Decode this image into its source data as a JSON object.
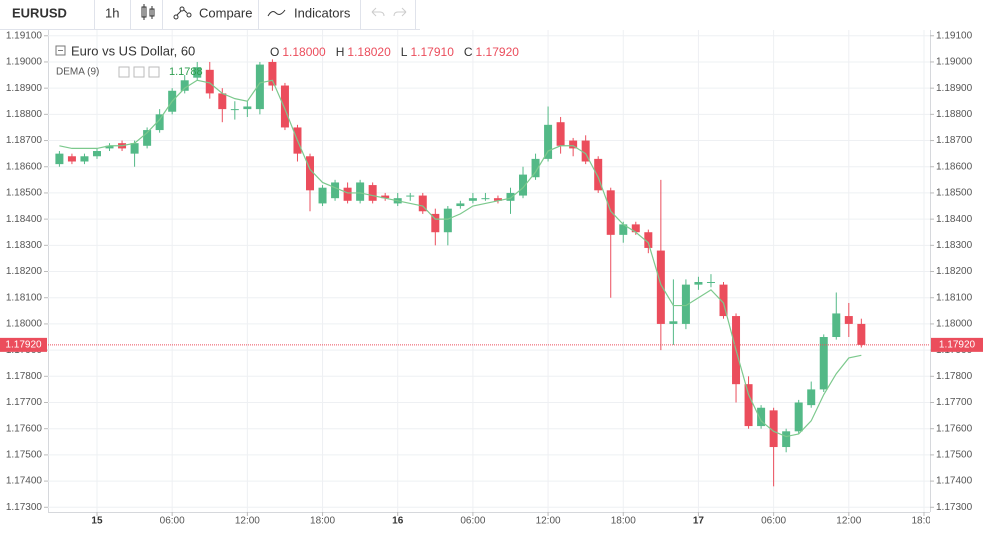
{
  "toolbar": {
    "symbol": "EURUSD",
    "interval": "1h",
    "compare": "Compare",
    "indicators": "Indicators"
  },
  "chart_data": {
    "type": "candlestick",
    "title": "Euro vs US Dollar, 60",
    "ohlc_legend": [
      {
        "key": "O",
        "value": "1.18000"
      },
      {
        "key": "H",
        "value": "1.18020"
      },
      {
        "key": "L",
        "value": "1.17910"
      },
      {
        "key": "C",
        "value": "1.17920"
      }
    ],
    "up_color": "#53b987",
    "down_color": "#eb4d5c",
    "x": [
      -3,
      -2,
      -1,
      0,
      1,
      2,
      3,
      4,
      5,
      6,
      7,
      8,
      9,
      10,
      11,
      12,
      13,
      14,
      15,
      16,
      17,
      18,
      19,
      20,
      21,
      22,
      23,
      24,
      25,
      26,
      27,
      28,
      29,
      30,
      31,
      32,
      33,
      34,
      35,
      36,
      37,
      38,
      39,
      40,
      41,
      42,
      43,
      44,
      45,
      46,
      47,
      48,
      49,
      50,
      51,
      52,
      53,
      54,
      55,
      56,
      57,
      58,
      59,
      60,
      61
    ],
    "open": [
      1.1861,
      1.1864,
      1.1862,
      1.1864,
      1.1867,
      1.1869,
      1.1865,
      1.1868,
      1.1874,
      1.1881,
      1.1889,
      1.1894,
      1.1897,
      1.1888,
      1.1882,
      1.1882,
      1.1882,
      1.19,
      1.1891,
      1.1875,
      1.1864,
      1.1846,
      1.1848,
      1.1852,
      1.1847,
      1.1853,
      1.1849,
      1.1846,
      1.1849,
      1.1849,
      1.1842,
      1.1835,
      1.1845,
      1.1847,
      1.1848,
      1.1848,
      1.1847,
      1.1849,
      1.1856,
      1.1863,
      1.1877,
      1.187,
      1.187,
      1.1863,
      1.1851,
      1.1834,
      1.1838,
      1.1835,
      1.1828,
      1.18,
      1.18,
      1.1815,
      1.1816,
      1.1815,
      1.1803,
      1.1777,
      1.1761,
      1.1767,
      1.1753,
      1.1759,
      1.1769,
      1.1775,
      1.1795,
      1.1803,
      1.18
    ],
    "high": [
      1.1866,
      1.1865,
      1.1865,
      1.1867,
      1.1869,
      1.187,
      1.187,
      1.1875,
      1.1882,
      1.189,
      1.1895,
      1.19,
      1.19,
      1.189,
      1.1885,
      1.1885,
      1.19,
      1.1901,
      1.1892,
      1.1876,
      1.1865,
      1.1853,
      1.1855,
      1.1854,
      1.1855,
      1.1854,
      1.185,
      1.185,
      1.185,
      1.185,
      1.1844,
      1.1845,
      1.1847,
      1.185,
      1.185,
      1.1849,
      1.1852,
      1.186,
      1.1865,
      1.1883,
      1.1879,
      1.1871,
      1.1872,
      1.1864,
      1.1852,
      1.1839,
      1.1839,
      1.1836,
      1.1855,
      1.1817,
      1.1817,
      1.1818,
      1.1819,
      1.1816,
      1.1804,
      1.178,
      1.1769,
      1.1768,
      1.176,
      1.1771,
      1.1778,
      1.1796,
      1.1812,
      1.1808,
      1.1802
    ],
    "low": [
      1.186,
      1.1861,
      1.1861,
      1.1863,
      1.1866,
      1.1866,
      1.186,
      1.1867,
      1.1873,
      1.188,
      1.1888,
      1.1893,
      1.1886,
      1.1877,
      1.1878,
      1.1879,
      1.188,
      1.1889,
      1.1874,
      1.1862,
      1.1843,
      1.1845,
      1.1847,
      1.1846,
      1.1846,
      1.1846,
      1.1847,
      1.1845,
      1.1847,
      1.1842,
      1.183,
      1.183,
      1.1844,
      1.1846,
      1.1847,
      1.1846,
      1.1842,
      1.1848,
      1.1855,
      1.1862,
      1.1865,
      1.1864,
      1.1861,
      1.185,
      1.181,
      1.1831,
      1.1834,
      1.1827,
      1.179,
      1.1792,
      1.1798,
      1.1813,
      1.1814,
      1.1802,
      1.177,
      1.176,
      1.176,
      1.1738,
      1.1751,
      1.1758,
      1.1768,
      1.1774,
      1.1794,
      1.1795,
      1.1791
    ],
    "close": [
      1.1865,
      1.1862,
      1.1864,
      1.1866,
      1.1868,
      1.1867,
      1.1869,
      1.1874,
      1.188,
      1.1889,
      1.1893,
      1.1898,
      1.1888,
      1.1882,
      1.1882,
      1.1883,
      1.1899,
      1.1891,
      1.1875,
      1.1865,
      1.1851,
      1.1852,
      1.1854,
      1.1847,
      1.1854,
      1.1847,
      1.1848,
      1.1848,
      1.1849,
      1.1843,
      1.1835,
      1.1844,
      1.1846,
      1.1848,
      1.1848,
      1.1847,
      1.185,
      1.1857,
      1.1863,
      1.1876,
      1.1868,
      1.1867,
      1.1862,
      1.1851,
      1.1834,
      1.1838,
      1.1835,
      1.1829,
      1.18,
      1.1801,
      1.1815,
      1.1816,
      1.1816,
      1.1803,
      1.1777,
      1.1761,
      1.1768,
      1.1753,
      1.1759,
      1.177,
      1.1775,
      1.1795,
      1.1804,
      1.18,
      1.1792
    ],
    "indicator": {
      "name": "DEMA (9)",
      "color": "#7cc98d",
      "values": [
        1.1868,
        1.1867,
        1.1867,
        1.1867,
        1.1868,
        1.1868,
        1.1869,
        1.1873,
        1.1878,
        1.1885,
        1.189,
        1.1893,
        1.1892,
        1.1888,
        1.1886,
        1.1885,
        1.1892,
        1.1893,
        1.1882,
        1.187,
        1.1859,
        1.1854,
        1.1852,
        1.185,
        1.185,
        1.1849,
        1.1848,
        1.1847,
        1.1846,
        1.1845,
        1.184,
        1.184,
        1.1842,
        1.1845,
        1.1846,
        1.1847,
        1.1848,
        1.1852,
        1.1858,
        1.1866,
        1.1868,
        1.1868,
        1.1865,
        1.1856,
        1.1843,
        1.1838,
        1.1835,
        1.1831,
        1.1815,
        1.1807,
        1.1807,
        1.181,
        1.1813,
        1.1808,
        1.179,
        1.1773,
        1.1763,
        1.1759,
        1.1757,
        1.1758,
        1.1763,
        1.1773,
        1.1781,
        1.1787,
        1.1788
      ]
    },
    "last_price": {
      "value": 1.1792,
      "label": "1.17920",
      "color": "#eb4d5c"
    },
    "xlim": [
      -3.91,
      66.48
    ],
    "xticks": [
      {
        "value": 0,
        "label": "15"
      },
      {
        "value": 6,
        "label": "06:00"
      },
      {
        "value": 12,
        "label": "12:00"
      },
      {
        "value": 18,
        "label": "18:00"
      },
      {
        "value": 24,
        "label": "16"
      },
      {
        "value": 30,
        "label": "06:00"
      },
      {
        "value": 36,
        "label": "12:00"
      },
      {
        "value": 42,
        "label": "18:00"
      },
      {
        "value": 48,
        "label": "17"
      },
      {
        "value": 54,
        "label": "06:00"
      },
      {
        "value": 60,
        "label": "12:00"
      },
      {
        "value": 66,
        "label": "18:00"
      }
    ],
    "ylim": [
      1.17282,
      1.19122
    ],
    "yticks": [
      {
        "value": 1.173,
        "label": "1.17300"
      },
      {
        "value": 1.174,
        "label": "1.17400"
      },
      {
        "value": 1.175,
        "label": "1.17500"
      },
      {
        "value": 1.176,
        "label": "1.17600"
      },
      {
        "value": 1.177,
        "label": "1.17700"
      },
      {
        "value": 1.178,
        "label": "1.17800"
      },
      {
        "value": 1.179,
        "label": "1.17900"
      },
      {
        "value": 1.18,
        "label": "1.18000"
      },
      {
        "value": 1.181,
        "label": "1.18100"
      },
      {
        "value": 1.182,
        "label": "1.18200"
      },
      {
        "value": 1.183,
        "label": "1.18300"
      },
      {
        "value": 1.184,
        "label": "1.18400"
      },
      {
        "value": 1.185,
        "label": "1.18500"
      },
      {
        "value": 1.186,
        "label": "1.18600"
      },
      {
        "value": 1.187,
        "label": "1.18700"
      },
      {
        "value": 1.188,
        "label": "1.18800"
      },
      {
        "value": 1.189,
        "label": "1.18900"
      },
      {
        "value": 1.19,
        "label": "1.19000"
      },
      {
        "value": 1.191,
        "label": "1.19100"
      }
    ],
    "grid": true
  }
}
